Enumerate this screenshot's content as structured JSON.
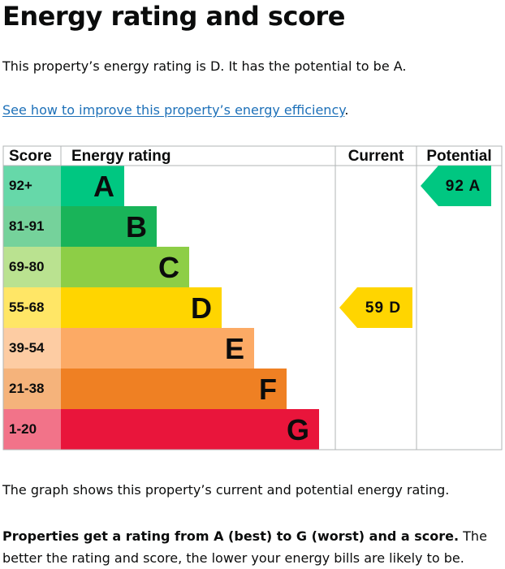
{
  "page": {
    "title": "Energy rating and score",
    "summary": "This property’s energy rating is D. It has the potential to be A.",
    "improve_link": "See how to improve this property’s energy efficiency",
    "improve_suffix": ".",
    "graph_note": "The graph shows this property’s current and potential energy rating.",
    "explanation_bold": "Properties get a rating from A (best) to G (worst) and a score.",
    "explanation_rest": " The better the rating and score, the lower your energy bills are likely to be."
  },
  "chart_data": {
    "type": "table",
    "headers": {
      "score": "Score",
      "rating": "Energy rating",
      "current": "Current",
      "potential": "Potential"
    },
    "bands": [
      {
        "letter": "A",
        "range": "92+",
        "color": "#00c781",
        "light": "#66d8a9"
      },
      {
        "letter": "B",
        "range": "81-91",
        "color": "#19b459",
        "light": "#75d29b"
      },
      {
        "letter": "C",
        "range": "69-80",
        "color": "#8dce46",
        "light": "#bae290"
      },
      {
        "letter": "D",
        "range": "55-68",
        "color": "#ffd500",
        "light": "#ffe666"
      },
      {
        "letter": "E",
        "range": "39-54",
        "color": "#fcaa65",
        "light": "#fdcca3"
      },
      {
        "letter": "F",
        "range": "21-38",
        "color": "#ef8023",
        "light": "#f5b37b"
      },
      {
        "letter": "G",
        "range": "1-20",
        "color": "#e9153b",
        "light": "#f27389"
      }
    ],
    "current": {
      "score": 59,
      "band": "D",
      "label": "59 D"
    },
    "potential": {
      "score": 92,
      "band": "A",
      "label": "92 A"
    }
  }
}
